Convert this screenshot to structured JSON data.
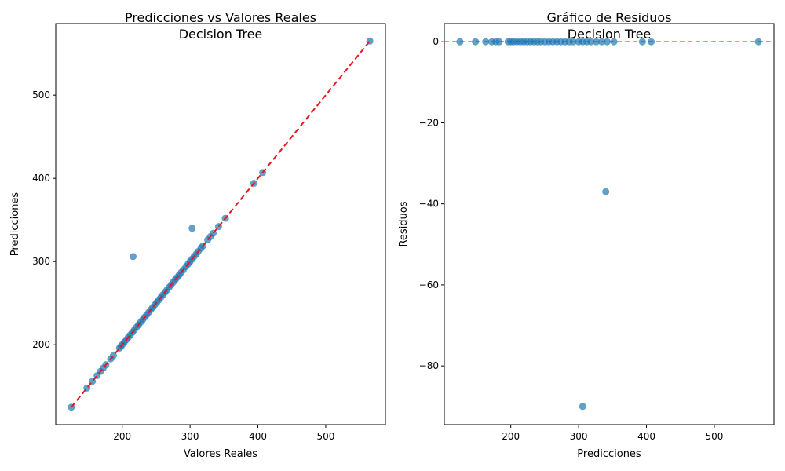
{
  "chart_data": [
    {
      "type": "scatter",
      "title": "Predicciones vs Valores Reales",
      "subtitle": "Decision Tree",
      "xlabel": "Valores Reales",
      "ylabel": "Predicciones",
      "xlim": [
        102,
        588
      ],
      "ylim": [
        104,
        586
      ],
      "xticks": [
        200,
        300,
        400,
        500
      ],
      "yticks": [
        200,
        300,
        400,
        500
      ],
      "xtick_labels": [
        "200",
        "300",
        "400",
        "500"
      ],
      "ytick_labels": [
        "200",
        "300",
        "400",
        "500"
      ],
      "marker_color": "#1f77b4",
      "line_color": "#e41a1c",
      "reference_line": {
        "x": [
          125,
          565
        ],
        "y": [
          125,
          565
        ],
        "style": "dashed"
      },
      "points": [
        {
          "x": 125,
          "y": 125
        },
        {
          "x": 148,
          "y": 148
        },
        {
          "x": 156,
          "y": 156
        },
        {
          "x": 163,
          "y": 163
        },
        {
          "x": 168,
          "y": 168
        },
        {
          "x": 172,
          "y": 172
        },
        {
          "x": 176,
          "y": 176
        },
        {
          "x": 183,
          "y": 183
        },
        {
          "x": 187,
          "y": 187
        },
        {
          "x": 196,
          "y": 196
        },
        {
          "x": 198,
          "y": 198
        },
        {
          "x": 200,
          "y": 200
        },
        {
          "x": 203,
          "y": 203
        },
        {
          "x": 206,
          "y": 206
        },
        {
          "x": 209,
          "y": 209
        },
        {
          "x": 212,
          "y": 212
        },
        {
          "x": 215,
          "y": 215
        },
        {
          "x": 218,
          "y": 218
        },
        {
          "x": 221,
          "y": 221
        },
        {
          "x": 224,
          "y": 224
        },
        {
          "x": 227,
          "y": 227
        },
        {
          "x": 230,
          "y": 230
        },
        {
          "x": 233,
          "y": 233
        },
        {
          "x": 236,
          "y": 236
        },
        {
          "x": 239,
          "y": 239
        },
        {
          "x": 242,
          "y": 242
        },
        {
          "x": 245,
          "y": 245
        },
        {
          "x": 248,
          "y": 248
        },
        {
          "x": 251,
          "y": 251
        },
        {
          "x": 254,
          "y": 254
        },
        {
          "x": 257,
          "y": 257
        },
        {
          "x": 260,
          "y": 260
        },
        {
          "x": 263,
          "y": 263
        },
        {
          "x": 266,
          "y": 266
        },
        {
          "x": 269,
          "y": 269
        },
        {
          "x": 272,
          "y": 272
        },
        {
          "x": 275,
          "y": 275
        },
        {
          "x": 278,
          "y": 278
        },
        {
          "x": 281,
          "y": 281
        },
        {
          "x": 284,
          "y": 284
        },
        {
          "x": 287,
          "y": 287
        },
        {
          "x": 290,
          "y": 290
        },
        {
          "x": 294,
          "y": 294
        },
        {
          "x": 297,
          "y": 297
        },
        {
          "x": 300,
          "y": 300
        },
        {
          "x": 303,
          "y": 303
        },
        {
          "x": 306,
          "y": 306
        },
        {
          "x": 309,
          "y": 309
        },
        {
          "x": 312,
          "y": 312
        },
        {
          "x": 316,
          "y": 316
        },
        {
          "x": 319,
          "y": 319
        },
        {
          "x": 326,
          "y": 326
        },
        {
          "x": 330,
          "y": 330
        },
        {
          "x": 334,
          "y": 334
        },
        {
          "x": 342,
          "y": 342
        },
        {
          "x": 352,
          "y": 352
        },
        {
          "x": 394,
          "y": 394
        },
        {
          "x": 407,
          "y": 407
        },
        {
          "x": 565,
          "y": 565
        },
        {
          "x": 216,
          "y": 306
        },
        {
          "x": 303,
          "y": 340
        }
      ]
    },
    {
      "type": "scatter",
      "title": "Gráfico de Residuos",
      "subtitle": "Decision Tree",
      "xlabel": "Predicciones",
      "ylabel": "Residuos",
      "xlim": [
        102,
        588
      ],
      "ylim": [
        -94.5,
        4.5
      ],
      "xticks": [
        200,
        300,
        400,
        500
      ],
      "yticks": [
        0,
        -20,
        -40,
        -60,
        -80
      ],
      "xtick_labels": [
        "200",
        "300",
        "400",
        "500"
      ],
      "ytick_labels": [
        "0",
        "−20",
        "−40",
        "−60",
        "−80"
      ],
      "marker_color": "#1f77b4",
      "line_color": "#e41a1c",
      "reference_line": {
        "y": 0,
        "style": "dashed"
      },
      "points": [
        {
          "x": 125,
          "y": 0
        },
        {
          "x": 148,
          "y": 0
        },
        {
          "x": 163,
          "y": 0
        },
        {
          "x": 172,
          "y": 0
        },
        {
          "x": 178,
          "y": 0
        },
        {
          "x": 183,
          "y": 0
        },
        {
          "x": 196,
          "y": 0
        },
        {
          "x": 200,
          "y": 0
        },
        {
          "x": 204,
          "y": 0
        },
        {
          "x": 209,
          "y": 0
        },
        {
          "x": 214,
          "y": 0
        },
        {
          "x": 219,
          "y": 0
        },
        {
          "x": 224,
          "y": 0
        },
        {
          "x": 229,
          "y": 0
        },
        {
          "x": 234,
          "y": 0
        },
        {
          "x": 239,
          "y": 0
        },
        {
          "x": 244,
          "y": 0
        },
        {
          "x": 250,
          "y": 0
        },
        {
          "x": 256,
          "y": 0
        },
        {
          "x": 262,
          "y": 0
        },
        {
          "x": 268,
          "y": 0
        },
        {
          "x": 274,
          "y": 0
        },
        {
          "x": 280,
          "y": 0
        },
        {
          "x": 286,
          "y": 0
        },
        {
          "x": 292,
          "y": 0
        },
        {
          "x": 300,
          "y": 0
        },
        {
          "x": 306,
          "y": 0
        },
        {
          "x": 312,
          "y": 0
        },
        {
          "x": 318,
          "y": 0
        },
        {
          "x": 326,
          "y": 0
        },
        {
          "x": 334,
          "y": 0
        },
        {
          "x": 342,
          "y": 0
        },
        {
          "x": 352,
          "y": 0
        },
        {
          "x": 394,
          "y": 0
        },
        {
          "x": 407,
          "y": 0
        },
        {
          "x": 565,
          "y": 0
        },
        {
          "x": 340,
          "y": -37
        },
        {
          "x": 306,
          "y": -90
        }
      ]
    }
  ]
}
